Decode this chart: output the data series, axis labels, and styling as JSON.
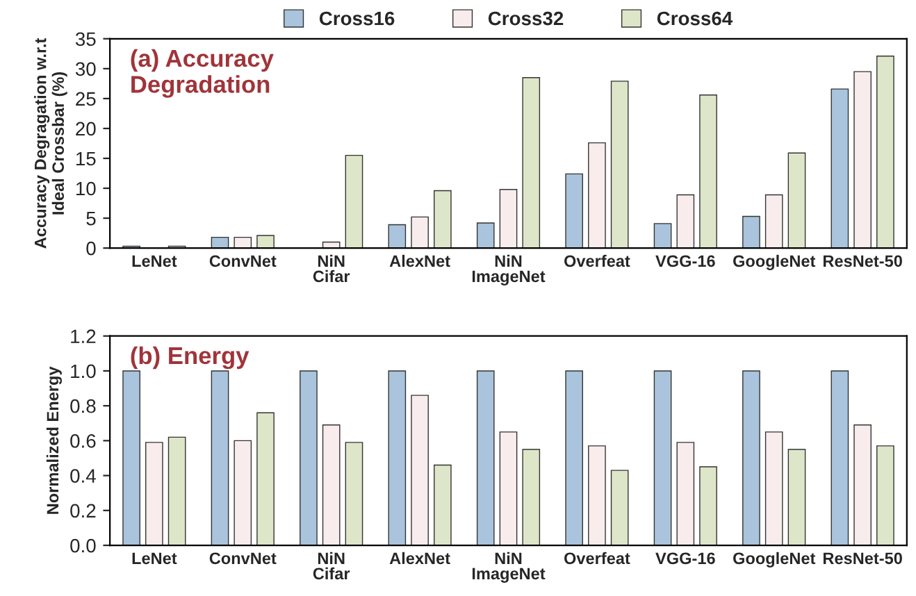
{
  "chart_data": [
    {
      "type": "bar",
      "title": "(a) Accuracy\nDegradation",
      "ylabel": "Accuracy Degragation w.r.t\nIdeal Crossbar (%)",
      "categories": [
        "LeNet",
        "ConvNet",
        "NiN\nCifar",
        "AlexNet",
        "NiN\nImageNet",
        "Overfeat",
        "VGG-16",
        "GoogleNet",
        "ResNet-50"
      ],
      "series": [
        {
          "name": "Cross16",
          "color": "#a9c4dc",
          "values": [
            0.3,
            1.8,
            0,
            3.9,
            4.2,
            12.4,
            4.1,
            5.3,
            26.6
          ]
        },
        {
          "name": "Cross32",
          "color": "#f8ecec",
          "values": [
            0,
            1.8,
            1.0,
            5.2,
            9.8,
            17.6,
            8.9,
            8.9,
            29.5
          ]
        },
        {
          "name": "Cross64",
          "color": "#dde6c8",
          "values": [
            0.3,
            2.1,
            15.5,
            9.6,
            28.5,
            27.9,
            25.6,
            15.9,
            32.1
          ]
        }
      ],
      "ylim": [
        0,
        35
      ],
      "yticks": [
        0,
        5,
        10,
        15,
        20,
        25,
        30,
        35
      ],
      "grid": false,
      "legend": "top"
    },
    {
      "type": "bar",
      "title": "(b) Energy",
      "ylabel": "Normalized Energy",
      "categories": [
        "LeNet",
        "ConvNet",
        "NiN\nCifar",
        "AlexNet",
        "NiN\nImageNet",
        "Overfeat",
        "VGG-16",
        "GoogleNet",
        "ResNet-50"
      ],
      "series": [
        {
          "color": "#a9c4dc",
          "values": [
            1,
            1,
            1,
            1,
            1,
            1,
            1,
            1,
            1
          ]
        },
        {
          "color": "#f8ecec",
          "values": [
            0.59,
            0.6,
            0.69,
            0.86,
            0.65,
            0.57,
            0.59,
            0.65,
            0.69
          ]
        },
        {
          "color": "#dde6c8",
          "values": [
            0.62,
            0.76,
            0.59,
            0.46,
            0.55,
            0.43,
            0.45,
            0.55,
            0.57
          ]
        }
      ],
      "ylim": [
        0,
        1.2
      ],
      "yticks": [
        {
          "value": 0,
          "label": "0.0"
        },
        {
          "value": 0.2,
          "label": "0.2"
        },
        {
          "value": 0.4,
          "label": "0.4"
        },
        {
          "value": 0.6,
          "label": "0.6"
        },
        {
          "value": 0.8,
          "label": "0.8"
        },
        {
          "value": 1.0,
          "label": "1.0"
        },
        {
          "value": 1.2,
          "label": "1.2"
        }
      ],
      "grid": false
    }
  ]
}
